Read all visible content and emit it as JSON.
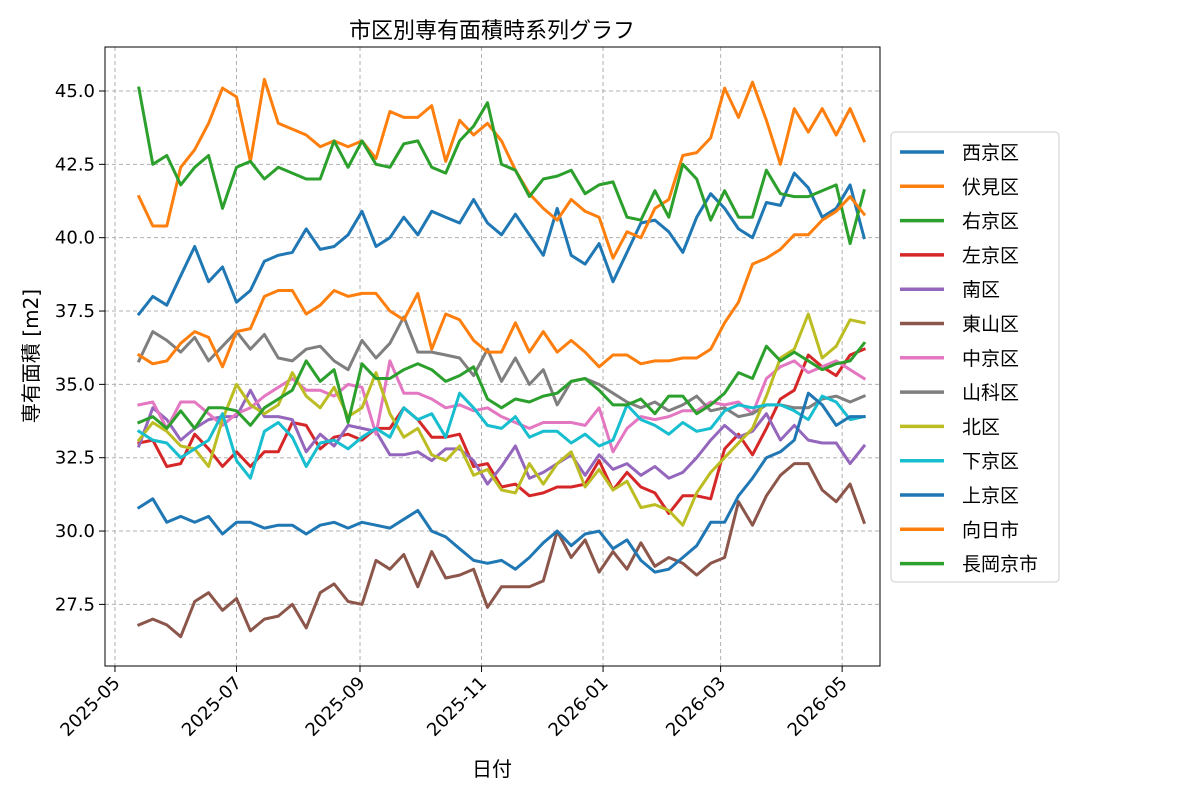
{
  "chart_data": {
    "type": "line",
    "title": "市区別専有面積時系列グラフ",
    "xlabel": "日付",
    "ylabel": "専有面積 [m2]",
    "xlim": [
      "2025-04-26",
      "2026-05-20"
    ],
    "ylim": [
      25.4,
      46.5
    ],
    "yticks": [
      27.5,
      30.0,
      32.5,
      35.0,
      37.5,
      40.0,
      42.5,
      45.0
    ],
    "ytick_labels": [
      "27.5",
      "30.0",
      "32.5",
      "35.0",
      "37.5",
      "40.0",
      "42.5",
      "45.0"
    ],
    "xticks": [
      "2025-05-01",
      "2025-07-01",
      "2025-09-01",
      "2025-11-01",
      "2026-01-01",
      "2026-03-01",
      "2026-05-01"
    ],
    "xtick_labels": [
      "2025-05",
      "2025-07",
      "2025-09",
      "2025-11",
      "2026-01",
      "2026-03",
      "2026-05"
    ],
    "grid": true,
    "legend_position": "right-outside",
    "x": [
      "2025-05-13",
      "2025-05-20",
      "2025-05-27",
      "2025-06-03",
      "2025-06-10",
      "2025-06-17",
      "2025-06-24",
      "2025-07-01",
      "2025-07-08",
      "2025-07-15",
      "2025-07-22",
      "2025-07-29",
      "2025-08-05",
      "2025-08-12",
      "2025-08-19",
      "2025-08-26",
      "2025-09-02",
      "2025-09-09",
      "2025-09-16",
      "2025-09-23",
      "2025-09-30",
      "2025-10-07",
      "2025-10-14",
      "2025-10-21",
      "2025-10-28",
      "2025-11-04",
      "2025-11-11",
      "2025-11-18",
      "2025-11-25",
      "2025-12-02",
      "2025-12-09",
      "2025-12-16",
      "2025-12-23",
      "2025-12-30",
      "2026-01-06",
      "2026-01-13",
      "2026-01-20",
      "2026-01-27",
      "2026-02-03",
      "2026-02-10",
      "2026-02-17",
      "2026-02-24",
      "2026-03-03",
      "2026-03-10",
      "2026-03-17",
      "2026-03-24",
      "2026-03-31",
      "2026-04-07",
      "2026-04-14",
      "2026-04-21",
      "2026-04-28",
      "2026-05-05",
      "2026-05-12"
    ],
    "series": [
      {
        "name": "西京区",
        "color": "#1f77b4",
        "values": [
          37.4,
          38.0,
          37.7,
          38.7,
          39.7,
          38.5,
          39.0,
          37.8,
          38.2,
          39.2,
          39.4,
          39.5,
          40.3,
          39.6,
          39.7,
          40.1,
          40.9,
          39.7,
          40.0,
          40.7,
          40.1,
          40.9,
          40.7,
          40.5,
          41.3,
          40.5,
          40.1,
          40.8,
          40.1,
          39.4,
          41.0,
          39.4,
          39.1,
          39.8,
          38.5,
          39.5,
          40.5,
          40.6,
          40.2,
          39.5,
          40.7,
          41.5,
          41.0,
          40.3,
          40.0,
          41.2,
          41.1,
          42.2,
          41.7,
          40.7,
          41.0,
          41.8,
          40.0
        ]
      },
      {
        "name": "伏見区",
        "color": "#ff7f0e",
        "values": [
          41.4,
          40.4,
          40.4,
          42.4,
          43.0,
          43.9,
          45.1,
          44.8,
          42.6,
          45.4,
          43.9,
          43.7,
          43.5,
          43.1,
          43.3,
          43.1,
          43.3,
          42.7,
          44.3,
          44.1,
          44.1,
          44.5,
          42.6,
          44.0,
          43.5,
          43.9,
          43.3,
          42.3,
          41.5,
          41.0,
          40.6,
          41.3,
          40.9,
          40.7,
          39.3,
          40.2,
          40.0,
          41.0,
          41.3,
          42.8,
          42.9,
          43.4,
          45.1,
          44.1,
          45.3,
          44.0,
          42.5,
          44.4,
          43.6,
          44.4,
          43.5,
          44.4,
          43.3
        ]
      },
      {
        "name": "右京区",
        "color": "#2ca02c",
        "values": [
          45.1,
          42.5,
          42.8,
          41.8,
          42.4,
          42.8,
          41.0,
          42.4,
          42.6,
          42.0,
          42.4,
          42.2,
          42.0,
          42.0,
          43.3,
          42.4,
          43.3,
          42.5,
          42.4,
          43.2,
          43.3,
          42.4,
          42.2,
          43.3,
          43.8,
          44.6,
          42.5,
          42.3,
          41.4,
          42.0,
          42.1,
          42.3,
          41.5,
          41.8,
          41.9,
          40.7,
          40.6,
          41.6,
          40.7,
          42.5,
          42.0,
          40.6,
          41.6,
          40.7,
          40.7,
          42.3,
          41.5,
          41.4,
          41.4,
          41.6,
          41.8,
          39.8,
          41.6
        ]
      },
      {
        "name": "左京区",
        "color": "#d62728",
        "values": [
          33.0,
          33.1,
          32.2,
          32.3,
          33.3,
          32.8,
          32.2,
          32.7,
          32.2,
          32.7,
          32.7,
          33.7,
          33.6,
          32.8,
          33.2,
          33.3,
          33.1,
          33.5,
          33.5,
          34.2,
          33.8,
          33.2,
          33.2,
          33.3,
          32.2,
          32.3,
          31.5,
          31.6,
          31.2,
          31.3,
          31.5,
          31.5,
          31.6,
          32.4,
          31.4,
          32.0,
          31.5,
          31.3,
          30.6,
          31.2,
          31.2,
          31.1,
          32.8,
          33.3,
          32.6,
          33.5,
          34.5,
          34.8,
          36.0,
          35.6,
          35.3,
          36.0,
          36.2
        ]
      },
      {
        "name": "南区",
        "color": "#9467bd",
        "values": [
          32.9,
          34.2,
          33.8,
          33.1,
          33.5,
          33.8,
          33.9,
          33.9,
          34.8,
          33.9,
          33.9,
          33.8,
          32.7,
          33.3,
          32.9,
          33.6,
          33.5,
          33.4,
          32.6,
          32.6,
          32.7,
          32.4,
          32.8,
          32.8,
          32.4,
          31.6,
          32.2,
          32.9,
          31.8,
          32.0,
          32.3,
          32.6,
          31.9,
          32.6,
          32.1,
          32.3,
          31.9,
          32.2,
          31.8,
          32.0,
          32.5,
          33.1,
          33.6,
          33.2,
          33.4,
          34.0,
          33.1,
          33.6,
          33.1,
          33.0,
          33.0,
          32.3,
          32.9
        ]
      },
      {
        "name": "東山区",
        "color": "#8c564b",
        "values": [
          26.8,
          27.0,
          26.8,
          26.4,
          27.6,
          27.9,
          27.3,
          27.7,
          26.6,
          27.0,
          27.1,
          27.5,
          26.7,
          27.9,
          28.2,
          27.6,
          27.5,
          29.0,
          28.7,
          29.2,
          28.1,
          29.3,
          28.4,
          28.5,
          28.7,
          27.4,
          28.1,
          28.1,
          28.1,
          28.3,
          30.0,
          29.1,
          29.7,
          28.6,
          29.3,
          28.7,
          29.6,
          28.8,
          29.1,
          28.9,
          28.5,
          28.9,
          29.1,
          31.0,
          30.2,
          31.2,
          31.9,
          32.3,
          32.3,
          31.4,
          31.0,
          31.6,
          30.3
        ]
      },
      {
        "name": "中京区",
        "color": "#e377c2",
        "values": [
          34.3,
          34.4,
          33.5,
          34.4,
          34.4,
          34.0,
          33.6,
          34.0,
          34.2,
          34.6,
          34.9,
          35.2,
          34.8,
          34.8,
          34.6,
          35.0,
          34.9,
          33.3,
          35.8,
          34.7,
          34.7,
          34.5,
          34.2,
          34.3,
          34.1,
          34.2,
          33.9,
          33.7,
          33.5,
          33.7,
          33.7,
          33.7,
          33.6,
          34.2,
          32.7,
          33.5,
          33.9,
          33.8,
          33.9,
          34.1,
          34.1,
          34.4,
          34.3,
          34.4,
          34.0,
          35.2,
          35.6,
          35.8,
          35.4,
          35.6,
          35.8,
          35.5,
          35.2
        ]
      },
      {
        "name": "山科区",
        "color": "#7f7f7f",
        "values": [
          35.8,
          36.8,
          36.5,
          36.1,
          36.6,
          35.8,
          36.3,
          36.8,
          36.2,
          36.7,
          35.9,
          35.8,
          36.2,
          36.3,
          35.8,
          35.5,
          36.5,
          35.9,
          36.4,
          37.3,
          36.1,
          36.1,
          36.0,
          35.9,
          35.3,
          36.2,
          35.1,
          35.9,
          35.0,
          35.5,
          34.3,
          35.1,
          35.2,
          35.0,
          34.7,
          34.4,
          34.2,
          34.4,
          34.1,
          34.3,
          34.6,
          34.1,
          34.2,
          33.9,
          34.0,
          34.3,
          34.3,
          34.2,
          34.2,
          34.5,
          34.6,
          34.4,
          34.6
        ]
      },
      {
        "name": "北区",
        "color": "#bcbd22",
        "values": [
          33.1,
          33.7,
          33.4,
          32.9,
          32.8,
          32.2,
          33.8,
          35.0,
          34.3,
          34.0,
          34.3,
          35.4,
          34.6,
          34.2,
          34.9,
          33.9,
          34.2,
          35.4,
          34.0,
          33.2,
          33.5,
          32.6,
          32.4,
          32.9,
          31.9,
          32.1,
          31.4,
          31.3,
          32.3,
          31.6,
          32.3,
          32.7,
          31.5,
          32.1,
          31.4,
          31.7,
          30.8,
          30.9,
          30.7,
          30.2,
          31.3,
          32.0,
          32.5,
          33.0,
          33.5,
          34.6,
          35.9,
          36.2,
          37.4,
          35.9,
          36.3,
          37.2,
          37.1
        ]
      },
      {
        "name": "下京区",
        "color": "#17becf",
        "values": [
          33.4,
          33.1,
          33.0,
          32.5,
          32.8,
          33.1,
          34.0,
          32.4,
          31.8,
          33.4,
          33.7,
          33.2,
          32.2,
          33.0,
          33.1,
          32.8,
          33.2,
          33.5,
          33.2,
          34.2,
          33.8,
          34.0,
          33.2,
          34.7,
          34.2,
          33.6,
          33.5,
          33.9,
          33.2,
          33.4,
          33.4,
          33.0,
          33.3,
          32.9,
          33.1,
          34.3,
          33.8,
          33.6,
          33.3,
          33.7,
          33.4,
          33.5,
          34.1,
          34.3,
          34.2,
          34.3,
          34.3,
          34.1,
          33.8,
          34.6,
          34.4,
          33.8,
          33.9
        ]
      },
      {
        "name": "上京区",
        "color": "#1f77b4",
        "values": [
          30.8,
          31.1,
          30.3,
          30.5,
          30.3,
          30.5,
          29.9,
          30.3,
          30.3,
          30.1,
          30.2,
          30.2,
          29.9,
          30.2,
          30.3,
          30.1,
          30.3,
          30.2,
          30.1,
          30.4,
          30.7,
          30.0,
          29.8,
          29.4,
          29.0,
          28.9,
          29.0,
          28.7,
          29.1,
          29.6,
          30.0,
          29.5,
          29.9,
          30.0,
          29.4,
          29.7,
          29.0,
          28.6,
          28.7,
          29.1,
          29.5,
          30.3,
          30.3,
          31.2,
          31.8,
          32.5,
          32.7,
          33.1,
          34.7,
          34.3,
          33.6,
          33.9,
          33.9
        ]
      },
      {
        "name": "向日市",
        "color": "#ff7f0e",
        "values": [
          36.0,
          35.7,
          35.8,
          36.4,
          36.8,
          36.6,
          35.6,
          36.8,
          36.9,
          38.0,
          38.2,
          38.2,
          37.4,
          37.7,
          38.2,
          38.0,
          38.1,
          38.1,
          37.5,
          37.2,
          38.1,
          36.2,
          37.4,
          37.2,
          36.5,
          36.1,
          36.1,
          37.1,
          36.1,
          36.8,
          36.1,
          36.5,
          36.1,
          35.6,
          36.0,
          36.0,
          35.7,
          35.8,
          35.8,
          35.9,
          35.9,
          36.2,
          37.1,
          37.8,
          39.1,
          39.3,
          39.6,
          40.1,
          40.1,
          40.6,
          40.9,
          41.4,
          40.8
        ]
      },
      {
        "name": "長岡京市",
        "color": "#2ca02c",
        "values": [
          33.7,
          33.9,
          33.5,
          34.1,
          33.5,
          34.2,
          34.2,
          34.1,
          33.6,
          34.2,
          34.5,
          34.8,
          35.8,
          35.1,
          35.5,
          33.7,
          35.7,
          35.2,
          35.2,
          35.5,
          35.7,
          35.5,
          35.1,
          35.3,
          35.6,
          34.5,
          34.2,
          34.5,
          34.4,
          34.6,
          34.7,
          35.1,
          35.2,
          34.8,
          34.3,
          34.3,
          34.5,
          34.0,
          34.6,
          34.6,
          34.0,
          34.3,
          34.7,
          35.4,
          35.2,
          36.3,
          35.8,
          36.1,
          35.8,
          35.5,
          35.7,
          35.8,
          36.4
        ]
      }
    ]
  }
}
